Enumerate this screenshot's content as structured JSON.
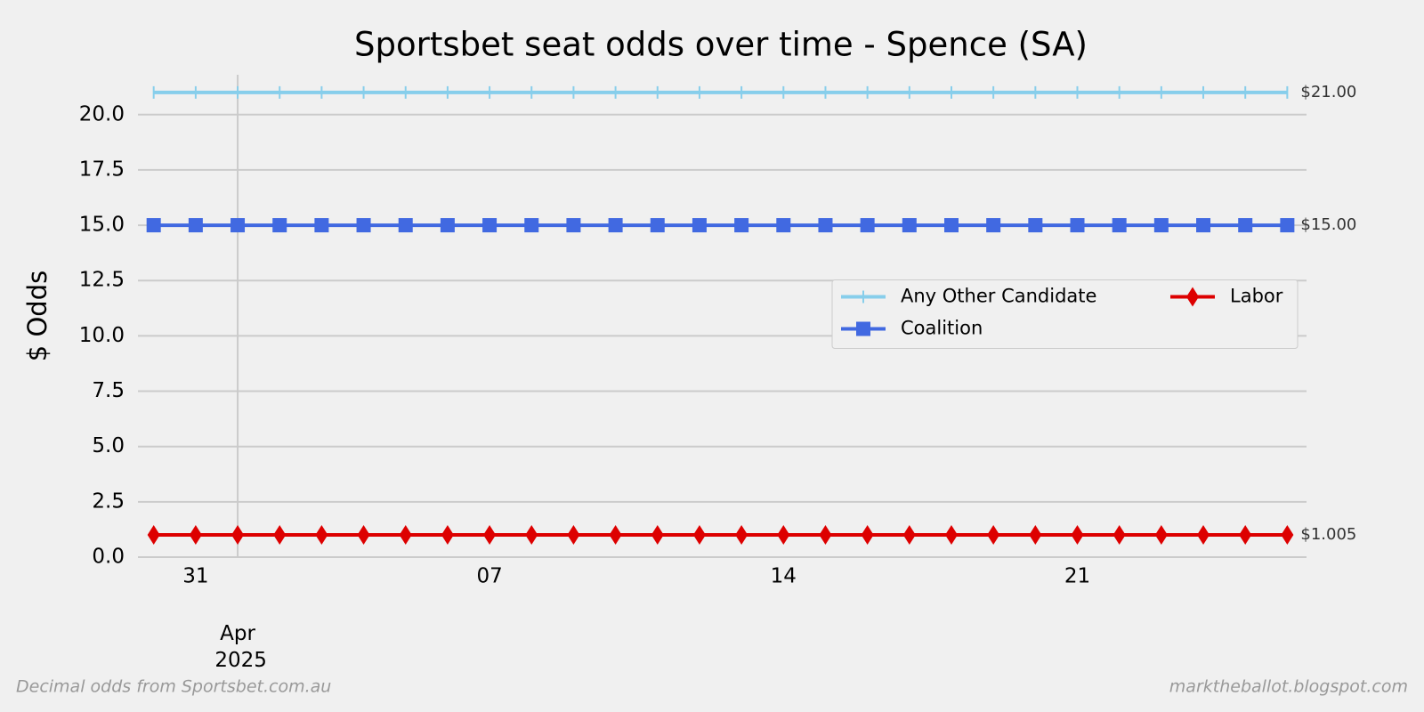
{
  "chart_data": {
    "type": "line",
    "title": "Sportsbet seat odds over time - Spence (SA)",
    "y_label": "$ Odds",
    "footnote_left": "Decimal odds from Sportsbet.com.au",
    "footnote_right": "marktheballot.blogspot.com",
    "x": [
      "2025-03-30",
      "2025-03-31",
      "2025-04-01",
      "2025-04-02",
      "2025-04-03",
      "2025-04-04",
      "2025-04-05",
      "2025-04-06",
      "2025-04-07",
      "2025-04-08",
      "2025-04-09",
      "2025-04-10",
      "2025-04-11",
      "2025-04-12",
      "2025-04-13",
      "2025-04-14",
      "2025-04-15",
      "2025-04-16",
      "2025-04-17",
      "2025-04-18",
      "2025-04-19",
      "2025-04-20",
      "2025-04-21",
      "2025-04-22",
      "2025-04-23",
      "2025-04-24",
      "2025-04-25",
      "2025-04-26"
    ],
    "series": [
      {
        "name": "Any Other Candidate",
        "color": "#87ceeb",
        "marker": "|",
        "end_label": "$21.00",
        "values": [
          21,
          21,
          21,
          21,
          21,
          21,
          21,
          21,
          21,
          21,
          21,
          21,
          21,
          21,
          21,
          21,
          21,
          21,
          21,
          21,
          21,
          21,
          21,
          21,
          21,
          21,
          21,
          21
        ]
      },
      {
        "name": "Coalition",
        "color": "#4169e1",
        "marker": "s",
        "end_label": "$15.00",
        "values": [
          15,
          15,
          15,
          15,
          15,
          15,
          15,
          15,
          15,
          15,
          15,
          15,
          15,
          15,
          15,
          15,
          15,
          15,
          15,
          15,
          15,
          15,
          15,
          15,
          15,
          15,
          15,
          15
        ]
      },
      {
        "name": "Labor",
        "color": "#dd0000",
        "marker": "d",
        "end_label": "$1.005",
        "values": [
          1.005,
          1.005,
          1.005,
          1.005,
          1.005,
          1.005,
          1.005,
          1.005,
          1.005,
          1.005,
          1.005,
          1.005,
          1.005,
          1.005,
          1.005,
          1.005,
          1.005,
          1.005,
          1.005,
          1.005,
          1.005,
          1.005,
          1.005,
          1.005,
          1.005,
          1.005,
          1.005,
          1.005
        ]
      }
    ],
    "xlim": [
      "2025-03-29T15:00:00",
      "2025-04-26T11:00:00"
    ],
    "xticks": [
      {
        "value": "2025-03-31",
        "label": "31"
      },
      {
        "value": "2025-04-07",
        "label": "07"
      },
      {
        "value": "2025-04-14",
        "label": "14"
      },
      {
        "value": "2025-04-21",
        "label": "21"
      }
    ],
    "x_major_ticks": [
      {
        "value": "2025-04-01",
        "label": "Apr 2025"
      }
    ],
    "ylim": [
      0,
      21.8
    ],
    "yticks": [
      {
        "value": 0,
        "label": "0.0"
      },
      {
        "value": 2.5,
        "label": "2.5"
      },
      {
        "value": 5,
        "label": "5.0"
      },
      {
        "value": 7.5,
        "label": "7.5"
      },
      {
        "value": 10,
        "label": "10.0"
      },
      {
        "value": 12.5,
        "label": "12.5"
      },
      {
        "value": 15,
        "label": "15.0"
      },
      {
        "value": 17.5,
        "label": "17.5"
      },
      {
        "value": 20,
        "label": "20.0"
      }
    ],
    "grid": true,
    "legend": "center right"
  }
}
